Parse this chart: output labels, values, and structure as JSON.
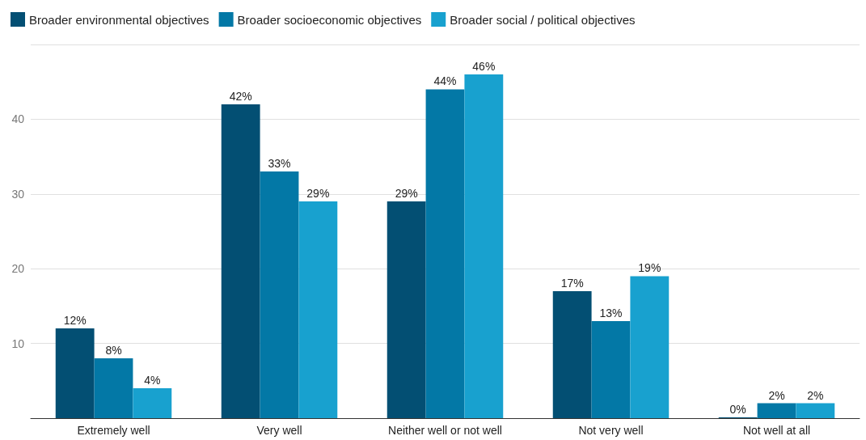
{
  "chart_data": {
    "type": "bar",
    "categories": [
      "Extremely well",
      "Very well",
      "Neither well or not well",
      "Not very well",
      "Not well at all"
    ],
    "series": [
      {
        "name": "Broader environmental objectives",
        "color": "#034f73",
        "values": [
          12,
          42,
          29,
          17,
          0
        ],
        "value_labels": [
          "12%",
          "42%",
          "29%",
          "17%",
          "0%"
        ]
      },
      {
        "name": "Broader socioeconomic objectives",
        "color": "#0378a6",
        "values": [
          8,
          33,
          44,
          13,
          2
        ],
        "value_labels": [
          "8%",
          "33%",
          "44%",
          "13%",
          "2%"
        ]
      },
      {
        "name": "Broader social / political objectives",
        "color": "#18a1cf",
        "values": [
          4,
          29,
          46,
          19,
          2
        ],
        "value_labels": [
          "4%",
          "29%",
          "46%",
          "19%",
          "2%"
        ]
      }
    ],
    "ylim": [
      0,
      50
    ],
    "yticks": [
      {
        "value": 0,
        "label": null
      },
      10,
      20,
      30,
      40,
      {
        "value": 50,
        "label": null
      }
    ],
    "grid": "y",
    "legend": "top left"
  }
}
